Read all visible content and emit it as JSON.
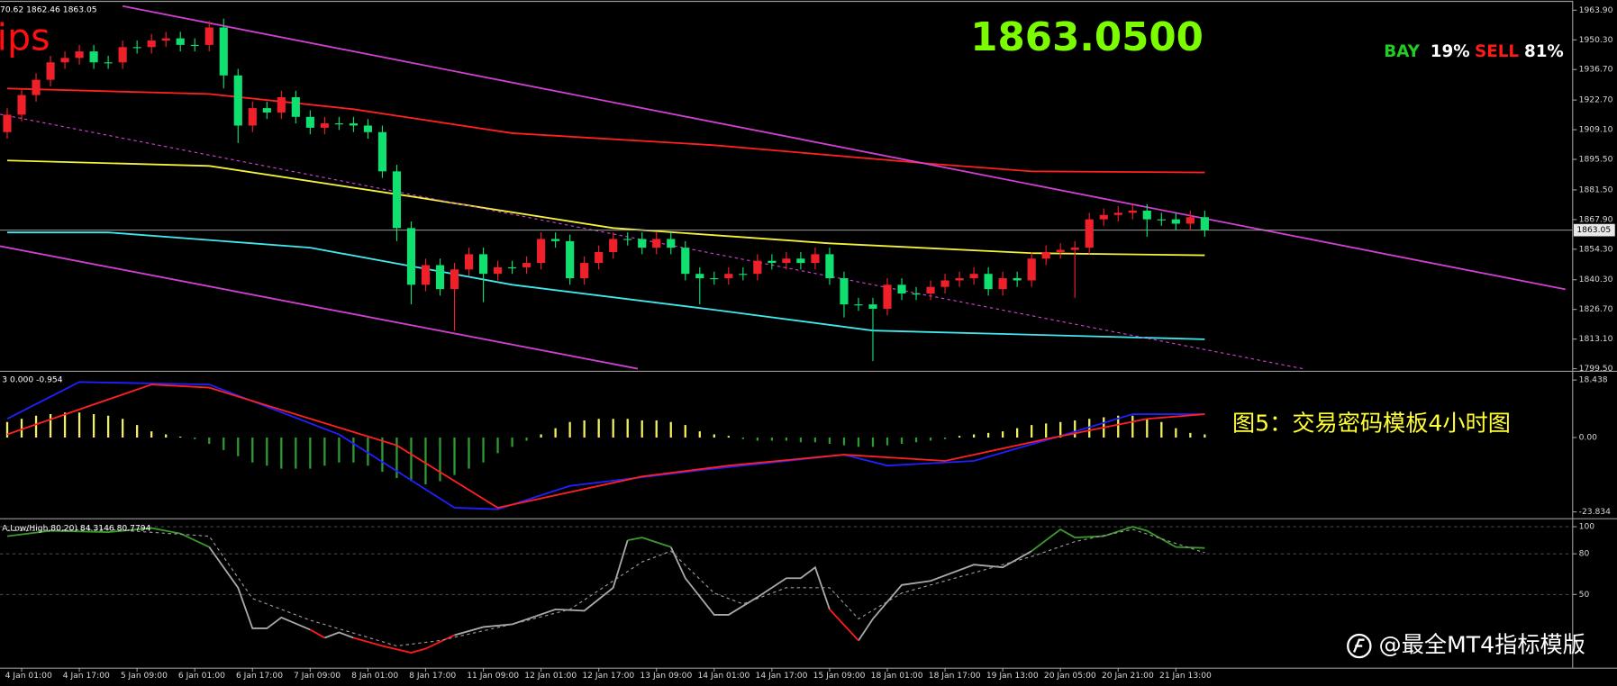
{
  "chart_data": [
    {
      "type": "candlestick",
      "info": "70.62 1862.46 1863.05",
      "logo_text": "ips",
      "price_text": "1863.0500",
      "buy_label": "BAY",
      "buy_share": "19%",
      "sell_label": "SELL",
      "sell_share": "81%",
      "x": [
        null,
        "4 Jan 01:00",
        null,
        null,
        null,
        "4 Jan 17:00",
        null,
        null,
        null,
        "5 Jan 09:00",
        null,
        null,
        null,
        "6 Jan 01:00",
        null,
        null,
        null,
        "6 Jan 17:00",
        null,
        null,
        null,
        "7 Jan 09:00",
        null,
        null,
        null,
        "8 Jan 01:00",
        null,
        null,
        null,
        "8 Jan 17:00",
        null,
        null,
        null,
        "11 Jan 09:00",
        null,
        null,
        null,
        "12 Jan 01:00",
        null,
        null,
        null,
        "12 Jan 17:00",
        null,
        null,
        null,
        "13 Jan 09:00",
        null,
        null,
        null,
        "14 Jan 01:00",
        null,
        null,
        null,
        "14 Jan 17:00",
        null,
        null,
        null,
        "15 Jan 09:00",
        null,
        null,
        null,
        "18 Jan 01:00",
        null,
        null,
        null,
        "18 Jan 17:00",
        null,
        null,
        null,
        "19 Jan 13:00",
        null,
        null,
        null,
        "20 Jan 05:00",
        null,
        null,
        null,
        "20 Jan 21:00",
        null,
        null,
        null,
        "21 Jan 13:00",
        null,
        null
      ],
      "open": [
        1908,
        1916,
        1925,
        1932,
        1940,
        1942,
        1945,
        1940,
        1940,
        1947,
        1947,
        1950,
        1951,
        1948,
        1948,
        1956,
        1934,
        1911,
        1919,
        1917,
        1924,
        1915,
        1910,
        1912,
        1912,
        1911,
        1908,
        1890,
        1864,
        1838,
        1847,
        1836,
        1845,
        1852,
        1843,
        1846,
        1846,
        1848,
        1859,
        1858,
        1841,
        1848,
        1853,
        1859,
        1859,
        1855,
        1859,
        1855,
        1843,
        1841,
        1841,
        1843,
        1843,
        1849,
        1848,
        1850,
        1848,
        1852,
        1841,
        1829,
        1829,
        1827,
        1838,
        1834,
        1834,
        1837,
        1840,
        1841,
        1843,
        1836,
        1841,
        1840,
        1850,
        1853,
        1854,
        1855,
        1868,
        1870,
        1871,
        1872,
        1868,
        1868,
        1866,
        1869
      ],
      "high": [
        1919,
        1928,
        1935,
        1943,
        1945,
        1948,
        1948,
        1943,
        1950,
        1950,
        1953,
        1954,
        1954,
        1951,
        1959,
        1960,
        1937,
        1922,
        1922,
        1927,
        1927,
        1918,
        1915,
        1915,
        1915,
        1914,
        1911,
        1893,
        1867,
        1850,
        1850,
        1848,
        1855,
        1855,
        1849,
        1849,
        1851,
        1862,
        1862,
        1861,
        1851,
        1856,
        1862,
        1862,
        1862,
        1862,
        1862,
        1858,
        1846,
        1844,
        1846,
        1846,
        1852,
        1852,
        1853,
        1853,
        1855,
        1855,
        1844,
        1832,
        1832,
        1841,
        1841,
        1837,
        1840,
        1843,
        1844,
        1846,
        1846,
        1844,
        1844,
        1853,
        1856,
        1857,
        1858,
        1871,
        1873,
        1874,
        1875,
        1875,
        1871,
        1871,
        1872,
        1872
      ],
      "low": [
        1905,
        1913,
        1922,
        1929,
        1937,
        1939,
        1937,
        1937,
        1937,
        1944,
        1944,
        1947,
        1945,
        1945,
        1945,
        1928,
        1903,
        1908,
        1914,
        1914,
        1912,
        1907,
        1907,
        1909,
        1908,
        1905,
        1887,
        1858,
        1829,
        1835,
        1833,
        1817,
        1842,
        1830,
        1840,
        1843,
        1843,
        1845,
        1855,
        1838,
        1838,
        1845,
        1850,
        1856,
        1852,
        1852,
        1852,
        1840,
        1829,
        1838,
        1838,
        1840,
        1840,
        1845,
        1845,
        1845,
        1845,
        1838,
        1823,
        1826,
        1803,
        1824,
        1831,
        1831,
        1831,
        1834,
        1837,
        1838,
        1833,
        1833,
        1837,
        1837,
        1847,
        1850,
        1832,
        1852,
        1865,
        1867,
        1868,
        1860,
        1865,
        1863,
        1863,
        1860
      ],
      "close": [
        1916,
        1925,
        1932,
        1940,
        1942,
        1945,
        1940,
        1940,
        1947,
        1947,
        1950,
        1951,
        1948,
        1948,
        1956,
        1934,
        1911,
        1919,
        1917,
        1924,
        1915,
        1910,
        1912,
        1912,
        1911,
        1908,
        1890,
        1864,
        1838,
        1847,
        1836,
        1845,
        1852,
        1843,
        1846,
        1846,
        1848,
        1859,
        1858,
        1841,
        1848,
        1853,
        1859,
        1859,
        1855,
        1859,
        1855,
        1843,
        1841,
        1841,
        1843,
        1843,
        1849,
        1848,
        1850,
        1848,
        1852,
        1841,
        1829,
        1829,
        1827,
        1838,
        1834,
        1834,
        1837,
        1840,
        1841,
        1843,
        1836,
        1841,
        1840,
        1850,
        1853,
        1854,
        1855,
        1868,
        1870,
        1871,
        1872,
        1868,
        1868,
        1866,
        1869,
        1863.05
      ],
      "up_color": "#f0202a",
      "down_color": "#10e070",
      "overlays": [
        {
          "color": "#ff2020",
          "x": [
            0,
            14,
            24,
            35,
            49,
            64,
            71,
            83
          ],
          "values": [
            1928,
            1925.5,
            1918.5,
            1907.5,
            1902,
            1893.5,
            1890,
            1889.5
          ]
        },
        {
          "color": "#f2f23a",
          "x": [
            0,
            14,
            28,
            42,
            57,
            71,
            83
          ],
          "values": [
            1895,
            1892.5,
            1878.5,
            1864,
            1857,
            1852.5,
            1851.5
          ]
        },
        {
          "color": "#40e8f0",
          "x": [
            0,
            7,
            21,
            35,
            49,
            60,
            83
          ],
          "values": [
            1862,
            1862,
            1855,
            1838,
            1826.5,
            1817,
            1813
          ]
        },
        {
          "color": "#d040d0",
          "x": [
            8,
            108
          ],
          "values": [
            1965.8,
            1835.9
          ]
        },
        {
          "color": "#d040d0",
          "x": [
            -0.5,
            43.7
          ],
          "values": [
            1855.7,
            1799.5
          ]
        },
        {
          "color": "#d040d0",
          "x": [
            -0.5,
            89.8
          ],
          "values": [
            1916.2,
            1799.5
          ],
          "dash": true
        }
      ],
      "last": {
        "value": 1863.05,
        "label": "1863.05"
      },
      "xlim": [
        -0.5,
        108.5
      ],
      "ylim": [
        1799,
        1968.2
      ],
      "yticks": [
        {
          "value": 1963.9,
          "label": "1963.90"
        },
        {
          "value": 1950.3,
          "label": "1950.30"
        },
        {
          "value": 1936.7,
          "label": "1936.70"
        },
        {
          "value": 1922.7,
          "label": "1922.70"
        },
        {
          "value": 1909.1,
          "label": "1909.10"
        },
        {
          "value": 1895.5,
          "label": "1895.50"
        },
        {
          "value": 1881.5,
          "label": "1881.50"
        },
        {
          "value": 1867.9,
          "label": "1867.90"
        },
        {
          "value": 1854.3,
          "label": "1854.30"
        },
        {
          "value": 1840.3,
          "label": "1840.30"
        },
        {
          "value": 1826.7,
          "label": "1826.70"
        },
        {
          "value": 1813.1,
          "label": "1813.10"
        },
        {
          "value": 1799.5,
          "label": "1799.50"
        }
      ],
      "grid": false
    },
    {
      "type": "macd",
      "title": "3 0.000 -0.954",
      "caption": "图5：交易密码模板4小时图",
      "values": [
        5,
        6,
        7,
        7.5,
        8,
        8,
        7.5,
        7,
        6,
        4,
        2,
        1,
        0.3,
        -0.5,
        -2,
        -4,
        -6,
        -8,
        -9,
        -10,
        -10,
        -10,
        -9,
        -8,
        -8,
        -9,
        -11,
        -13,
        -14,
        -15,
        -14,
        -12,
        -10,
        -8,
        -5,
        -3,
        -1,
        1,
        3,
        5,
        5.5,
        6,
        6,
        6,
        5.5,
        5.5,
        5,
        4,
        2,
        1,
        0.5,
        -0.5,
        -1,
        -1,
        -1,
        -1.5,
        -1.5,
        -2,
        -2.5,
        -3,
        -3,
        -2.5,
        -2,
        -1.5,
        -1,
        -0.5,
        0.5,
        1,
        1.5,
        2,
        3,
        4,
        4.5,
        5,
        5.5,
        6,
        6.5,
        7,
        7,
        6,
        5,
        3,
        1.5,
        1
      ],
      "up_color": "#f0f060",
      "down_color": "#2f9a2f",
      "series": [
        {
          "color": "#2020ff",
          "x": [
            0,
            5,
            14,
            23,
            31,
            34,
            39,
            48,
            58,
            61,
            67,
            73,
            78,
            83
          ],
          "values": [
            6,
            17.8,
            17,
            1,
            -22.5,
            -23,
            -15.5,
            -10.5,
            -5.5,
            -9,
            -7.5,
            0.5,
            7.5,
            7.5
          ]
        },
        {
          "color": "#ff2020",
          "x": [
            0,
            10,
            14,
            27,
            34,
            44,
            50,
            58,
            65,
            72,
            79,
            83
          ],
          "values": [
            1,
            17,
            16,
            -2.5,
            -22.5,
            -12.5,
            -9,
            -5.5,
            -7.5,
            -0.5,
            6,
            7.5
          ]
        }
      ],
      "xlim": [
        -0.5,
        108.5
      ],
      "ylim": [
        -25.2,
        20.4
      ],
      "yticks": [
        18.438,
        {
          "value": 0,
          "label": "0.00"
        },
        -23.834
      ],
      "grid": false
    },
    {
      "type": "stochastic",
      "title": "A.Low/High,80,20) 84.3146 80.7794",
      "watermark": "@最全MT4指标模版",
      "series": [
        {
          "color": "#a8a8a8",
          "x": [
            14,
            16,
            17,
            18,
            19,
            21,
            null,
            22,
            23,
            24,
            null,
            31,
            33,
            35,
            38,
            40,
            42,
            43,
            null,
            46,
            47,
            49,
            50,
            52,
            54,
            55,
            56,
            57,
            null,
            59,
            60,
            62,
            64,
            67,
            69,
            71
          ],
          "values": [
            85,
            55,
            25,
            25,
            33,
            24,
            null,
            18,
            22,
            18,
            null,
            20,
            26,
            28,
            39,
            38,
            55,
            90,
            null,
            85,
            62,
            35,
            35,
            48,
            62,
            62,
            70,
            39,
            null,
            16,
            32,
            57,
            60,
            72,
            70,
            82
          ]
        },
        {
          "color": "#ff1a1a",
          "x": [
            21,
            22,
            null,
            24,
            26,
            28,
            29,
            31,
            null,
            57,
            59
          ],
          "values": [
            24,
            18,
            null,
            18,
            12,
            7,
            10,
            20,
            null,
            39,
            16
          ]
        },
        {
          "color": "#3a9a2a",
          "x": [
            0,
            3,
            7,
            10,
            12,
            14,
            null,
            43,
            44,
            46,
            null,
            71,
            73,
            74,
            76,
            78,
            79,
            81,
            83
          ],
          "values": [
            93,
            97,
            96,
            99,
            95,
            85,
            null,
            90,
            92,
            85,
            null,
            82,
            98,
            92,
            93,
            100,
            97,
            85,
            84.3146
          ]
        },
        {
          "color": "#9a9a9a",
          "dash": true,
          "x": [
            0,
            7,
            14,
            17,
            21,
            27,
            30,
            35,
            39,
            44,
            46,
            49,
            51,
            54,
            57,
            59,
            62,
            67,
            71,
            74,
            78,
            83
          ],
          "values": [
            97,
            98,
            93,
            47,
            31,
            12,
            16,
            28,
            39,
            74,
            82,
            51,
            43,
            55,
            55,
            32,
            51,
            66,
            78,
            89,
            98,
            80.7794
          ]
        }
      ],
      "xlim": [
        -0.5,
        108.5
      ],
      "ylim": [
        -4,
        104
      ],
      "yticks": [
        100,
        80,
        50
      ],
      "grid": true
    }
  ]
}
